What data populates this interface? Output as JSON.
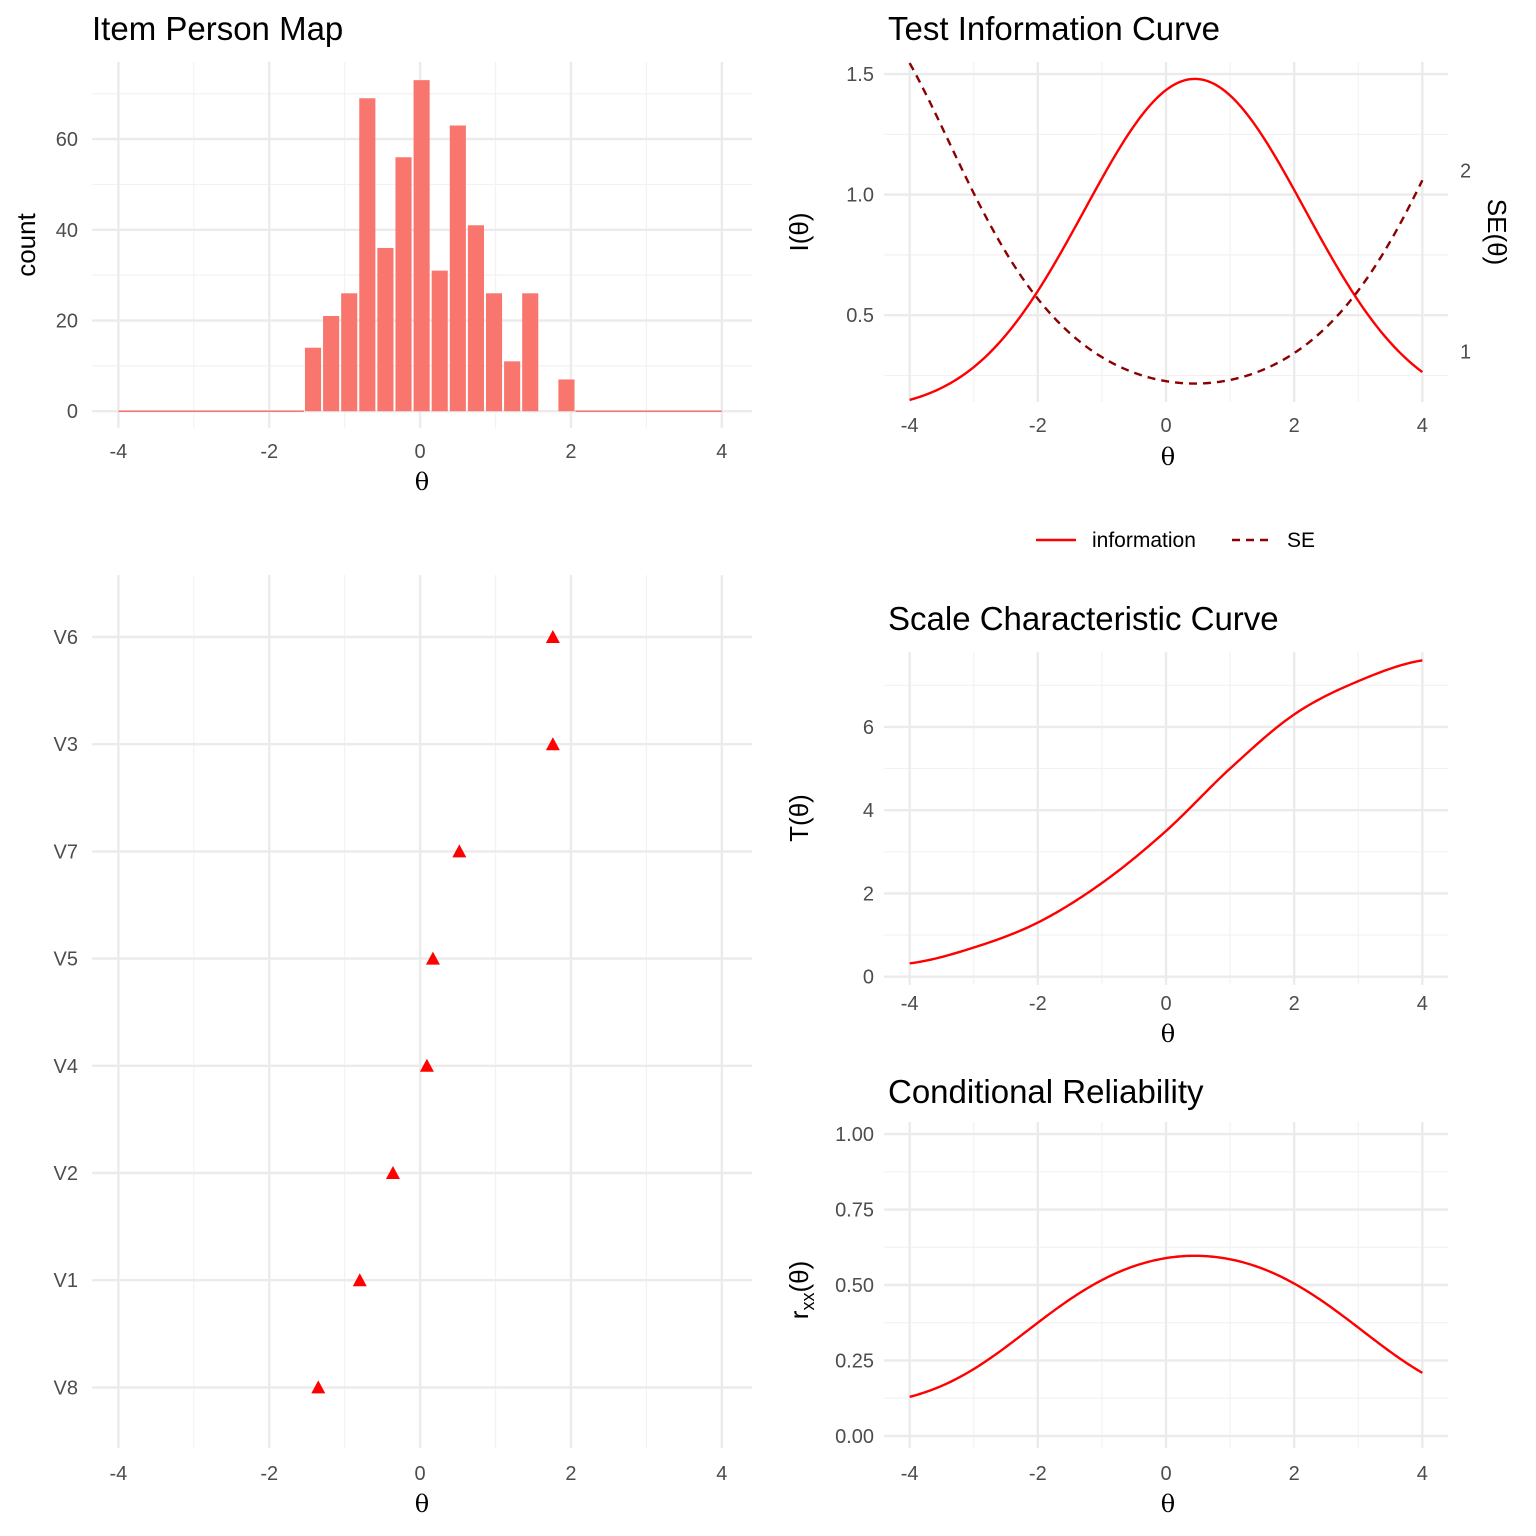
{
  "chart_data": [
    {
      "id": "hist",
      "type": "bar",
      "title": "Item Person Map",
      "xlabel": "θ",
      "ylabel": "count",
      "xlim": [
        -4.35,
        4.4
      ],
      "ylim": [
        -3.7,
        77
      ],
      "xticks": [
        -4,
        -2,
        0,
        2,
        4
      ],
      "yticks": [
        0,
        20,
        40,
        60
      ],
      "bin_width": 0.24,
      "bin_centers": [
        -1.42,
        -1.18,
        -0.94,
        -0.7,
        -0.46,
        -0.22,
        0.02,
        0.26,
        0.5,
        0.74,
        0.98,
        1.22,
        1.46,
        1.7,
        1.94
      ],
      "values": [
        14,
        21,
        26,
        69,
        36,
        56,
        73,
        31,
        63,
        41,
        26,
        11,
        26,
        0,
        7
      ],
      "bar_color": "#F8766D"
    },
    {
      "id": "items",
      "type": "scatter",
      "title": "",
      "xlabel": "θ",
      "ylabel": "",
      "xlim": [
        -4.35,
        4.4
      ],
      "xticks": [
        -4,
        -2,
        0,
        2,
        4
      ],
      "items": [
        "V6",
        "V3",
        "V7",
        "V5",
        "V4",
        "V2",
        "V1",
        "V8"
      ],
      "difficulty": [
        1.76,
        1.76,
        0.52,
        0.17,
        0.09,
        -0.36,
        -0.8,
        -1.35
      ],
      "marker": "triangle",
      "color": "#FF0000"
    },
    {
      "id": "tic",
      "type": "line",
      "title": "Test Information Curve",
      "xlabel": "θ",
      "ylabel": "I(θ)",
      "ylabel_right": "SE(θ)",
      "xlim": [
        -4.4,
        4.4
      ],
      "ylim": [
        0.14,
        1.55
      ],
      "yticks": [
        0.5,
        1.0,
        1.5
      ],
      "ytick_labels": [
        "0.5",
        "1.0",
        "1.5"
      ],
      "se_ticks": [
        1,
        2
      ],
      "se_range": [
        0.72,
        2.6
      ],
      "xticks": [
        -4,
        -2,
        0,
        2,
        4
      ],
      "info_peak": {
        "theta": 0.45,
        "max": 1.48,
        "base": 0.1,
        "sd": 1.72
      },
      "series": [
        {
          "name": "information",
          "style": "solid",
          "color": "#FF0000"
        },
        {
          "name": "SE",
          "style": "dashed",
          "color": "#8B0000"
        }
      ],
      "legend": [
        "information",
        "SE"
      ],
      "legend_position": "bottom"
    },
    {
      "id": "scc",
      "type": "line",
      "title": "Scale Characteristic Curve",
      "xlabel": "θ",
      "ylabel": "T(θ)",
      "xlim": [
        -4.4,
        4.4
      ],
      "ylim": [
        -0.2,
        7.8
      ],
      "yticks": [
        0,
        2,
        4,
        6
      ],
      "xticks": [
        -4,
        -2,
        0,
        2,
        4
      ],
      "curve": {
        "theta": [
          -4,
          -3,
          -2,
          -1,
          0,
          1,
          2,
          3,
          4
        ],
        "T": [
          0.32,
          0.7,
          1.3,
          2.25,
          3.5,
          5.0,
          6.3,
          7.1,
          7.6
        ]
      },
      "color": "#FF0000"
    },
    {
      "id": "rel",
      "type": "line",
      "title": "Conditional Reliability",
      "xlabel": "θ",
      "ylabel": "r",
      "ylabel_sub": "xx",
      "ylabel_tail": "(θ)",
      "xlim": [
        -4.4,
        4.4
      ],
      "ylim": [
        -0.04,
        1.04
      ],
      "yticks": [
        0.0,
        0.25,
        0.5,
        0.75,
        1.0
      ],
      "ytick_labels": [
        "0.00",
        "0.25",
        "0.50",
        "0.75",
        "1.00"
      ],
      "xticks": [
        -4,
        -2,
        0,
        2,
        4
      ],
      "color": "#FF0000"
    }
  ]
}
